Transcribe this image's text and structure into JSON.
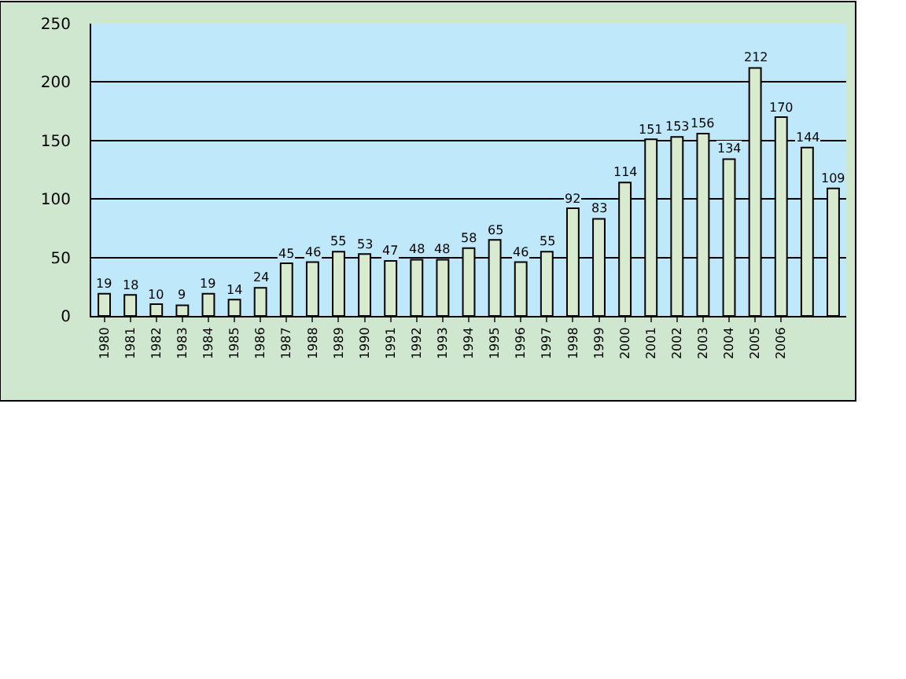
{
  "chart_data": {
    "type": "bar",
    "categories": [
      "1980",
      "1981",
      "1982",
      "1983",
      "1984",
      "1985",
      "1986",
      "1987",
      "1988",
      "1989",
      "1990",
      "1991",
      "1992",
      "1993",
      "1994",
      "1995",
      "1996",
      "1997",
      "1998",
      "1999",
      "2000",
      "2001",
      "2002",
      "2003",
      "2004",
      "2005",
      "2006",
      null,
      null
    ],
    "values": [
      19,
      18,
      10,
      9,
      19,
      14,
      24,
      45,
      46,
      55,
      53,
      47,
      48,
      48,
      58,
      65,
      46,
      55,
      92,
      83,
      114,
      151,
      153,
      156,
      134,
      212,
      170,
      144,
      109
    ],
    "color": "#d9ebcf",
    "ylim": [
      0,
      250
    ],
    "yticks": [
      0,
      50,
      100,
      150,
      200,
      250
    ],
    "grid": "y",
    "data_labels": true
  }
}
